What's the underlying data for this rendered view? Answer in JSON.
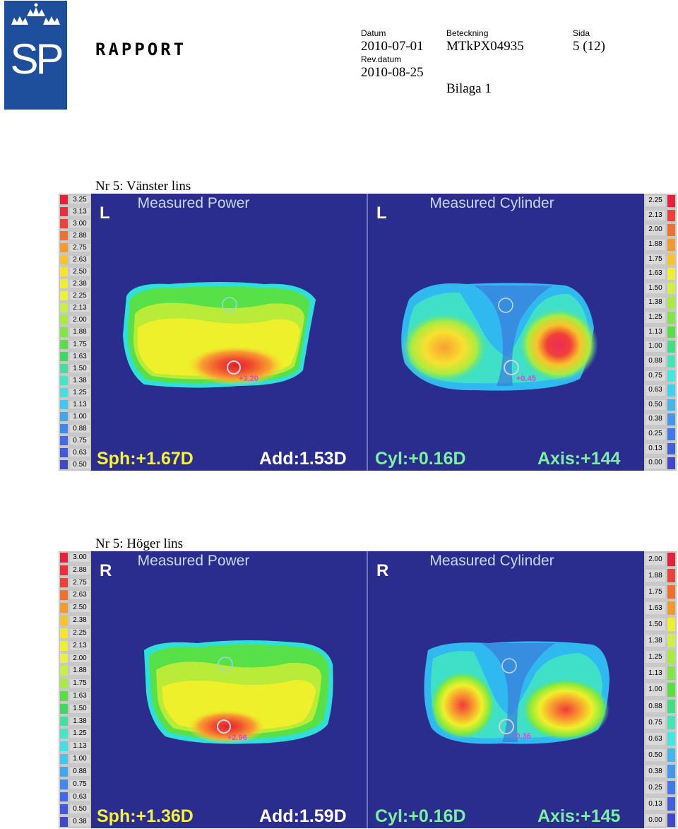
{
  "header": {
    "report_label": "RAPPORT",
    "datum_label": "Datum",
    "datum_value": "2010-07-01",
    "rev_label": "Rev.datum",
    "rev_value": "2010-08-25",
    "beteckning_label": "Beteckning",
    "beteckning_value": "MTkPX04935",
    "sida_label": "Sida",
    "sida_value": "5 (12)",
    "bilaga": "Bilaga 1",
    "logo_text": "SP"
  },
  "left_lens": {
    "section_title": "Nr 5: Vänster lins",
    "power_scale": [
      "3.25",
      "3.13",
      "3.00",
      "2.88",
      "2.75",
      "2.63",
      "2.50",
      "2.38",
      "2.25",
      "2.13",
      "2.00",
      "1.88",
      "1.75",
      "1.63",
      "1.50",
      "1.38",
      "1.25",
      "1.13",
      "1.00",
      "0.88",
      "0.75",
      "0.63",
      "0.50"
    ],
    "cylinder_scale": [
      "2.25",
      "2.13",
      "2.00",
      "1.88",
      "1.75",
      "1.63",
      "1.50",
      "1.38",
      "1.25",
      "1.13",
      "1.00",
      "0.88",
      "0.75",
      "0.63",
      "0.50",
      "0.38",
      "0.25",
      "0.13",
      "0.00"
    ],
    "power_map": {
      "eye": "L",
      "title": "Measured Power",
      "spot_value": "+3.20",
      "sph": "Sph:+1.67D",
      "add": "Add:1.53D"
    },
    "cylinder_map": {
      "eye": "L",
      "title": "Measured Cylinder",
      "spot_value": "+0.45",
      "cyl": "Cyl:+0.16D",
      "axis": "Axis:+144"
    }
  },
  "right_lens": {
    "section_title": "Nr 5: Höger lins",
    "power_scale": [
      "3.00",
      "2.88",
      "2.75",
      "2.63",
      "2.50",
      "2.38",
      "2.25",
      "2.13",
      "2.00",
      "1.88",
      "1.75",
      "1.63",
      "1.50",
      "1.38",
      "1.25",
      "1.13",
      "1.00",
      "0.88",
      "0.75",
      "0.63",
      "0.50",
      "0.38"
    ],
    "cylinder_scale": [
      "2.00",
      "1.88",
      "1.75",
      "1.63",
      "1.50",
      "1.38",
      "1.25",
      "1.13",
      "1.00",
      "0.88",
      "0.75",
      "0.63",
      "0.50",
      "0.38",
      "0.25",
      "0.13",
      "0.00"
    ],
    "power_map": {
      "eye": "R",
      "title": "Measured Power",
      "spot_value": "+2.96",
      "sph": "Sph:+1.36D",
      "add": "Add:1.59D"
    },
    "cylinder_map": {
      "eye": "R",
      "title": "Measured Cylinder",
      "spot_value": "+0.36",
      "cyl": "Cyl:+0.16D",
      "axis": "Axis:+145"
    }
  },
  "colors": {
    "map_background": "#2b2d8e",
    "stat_yellow": "#f5f03a",
    "stat_white": "#ffffff",
    "stat_green": "#7cf0a0",
    "power_swatches": [
      "#e8203a",
      "#ee2c3c",
      "#f0403a",
      "#f4702a",
      "#f89a2a",
      "#f8c42a",
      "#f8e42a",
      "#f0f02a",
      "#e8f040",
      "#c8f040",
      "#a8ec40",
      "#80e840",
      "#58e040",
      "#40d860",
      "#40e0a0",
      "#40e8c8",
      "#40e0e8",
      "#40c8f0",
      "#40a8f0",
      "#4088f0",
      "#4068f0",
      "#4058e0",
      "#4048d0"
    ],
    "cyl_swatches": [
      "#e8203a",
      "#f04038",
      "#f4702a",
      "#f89a2a",
      "#f8c42a",
      "#f0f02a",
      "#d0f040",
      "#a8ec40",
      "#80e840",
      "#58e040",
      "#40e080",
      "#40e8b8",
      "#40e8e0",
      "#40d0f0",
      "#40b8f0",
      "#4098f0",
      "#4078f0",
      "#4060e0",
      "#4048d0"
    ]
  }
}
